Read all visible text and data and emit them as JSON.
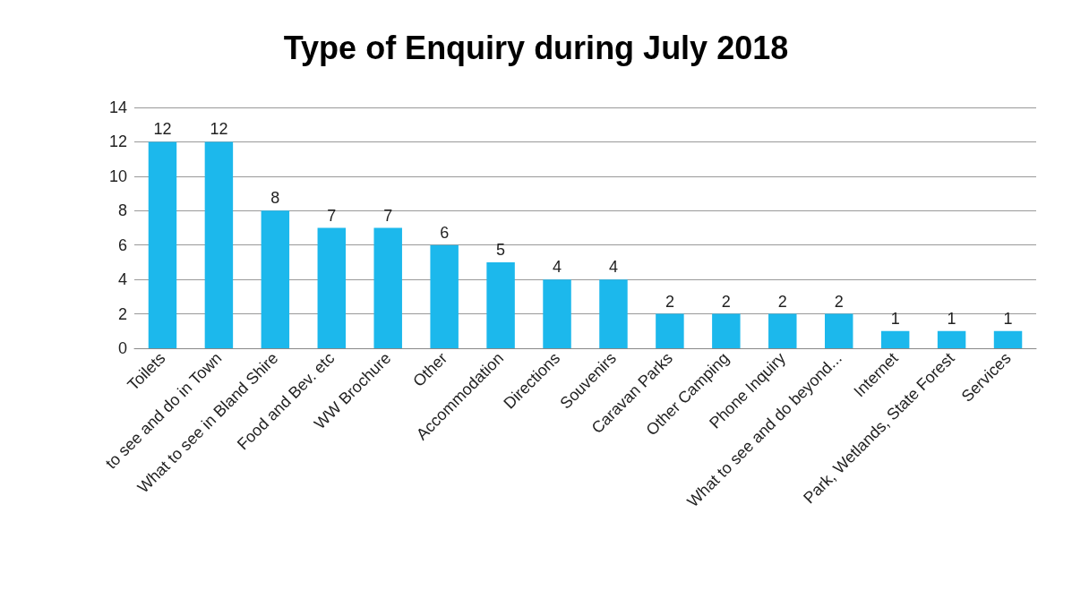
{
  "chart_data": {
    "type": "bar",
    "title": "Type of Enquiry during July 2018",
    "categories": [
      "Toilets",
      "to see and do in Town",
      "What to see in Bland Shire",
      "Food and Bev. etc",
      "WW Brochure",
      "Other",
      "Accommodation",
      "Directions",
      "Souvenirs",
      "Caravan Parks",
      "Other Camping",
      "Phone Inquiry",
      "What to see and do beyond...",
      "Internet",
      "Park, Wetlands, State Forest",
      "Services"
    ],
    "values": [
      12,
      12,
      8,
      7,
      7,
      6,
      5,
      4,
      4,
      2,
      2,
      2,
      2,
      1,
      1,
      1
    ],
    "color": "#1cb8ec",
    "ylim": [
      0,
      14
    ],
    "yticks": [
      0,
      2,
      4,
      6,
      8,
      10,
      12,
      14
    ],
    "grid": "y",
    "data_labels": true
  }
}
